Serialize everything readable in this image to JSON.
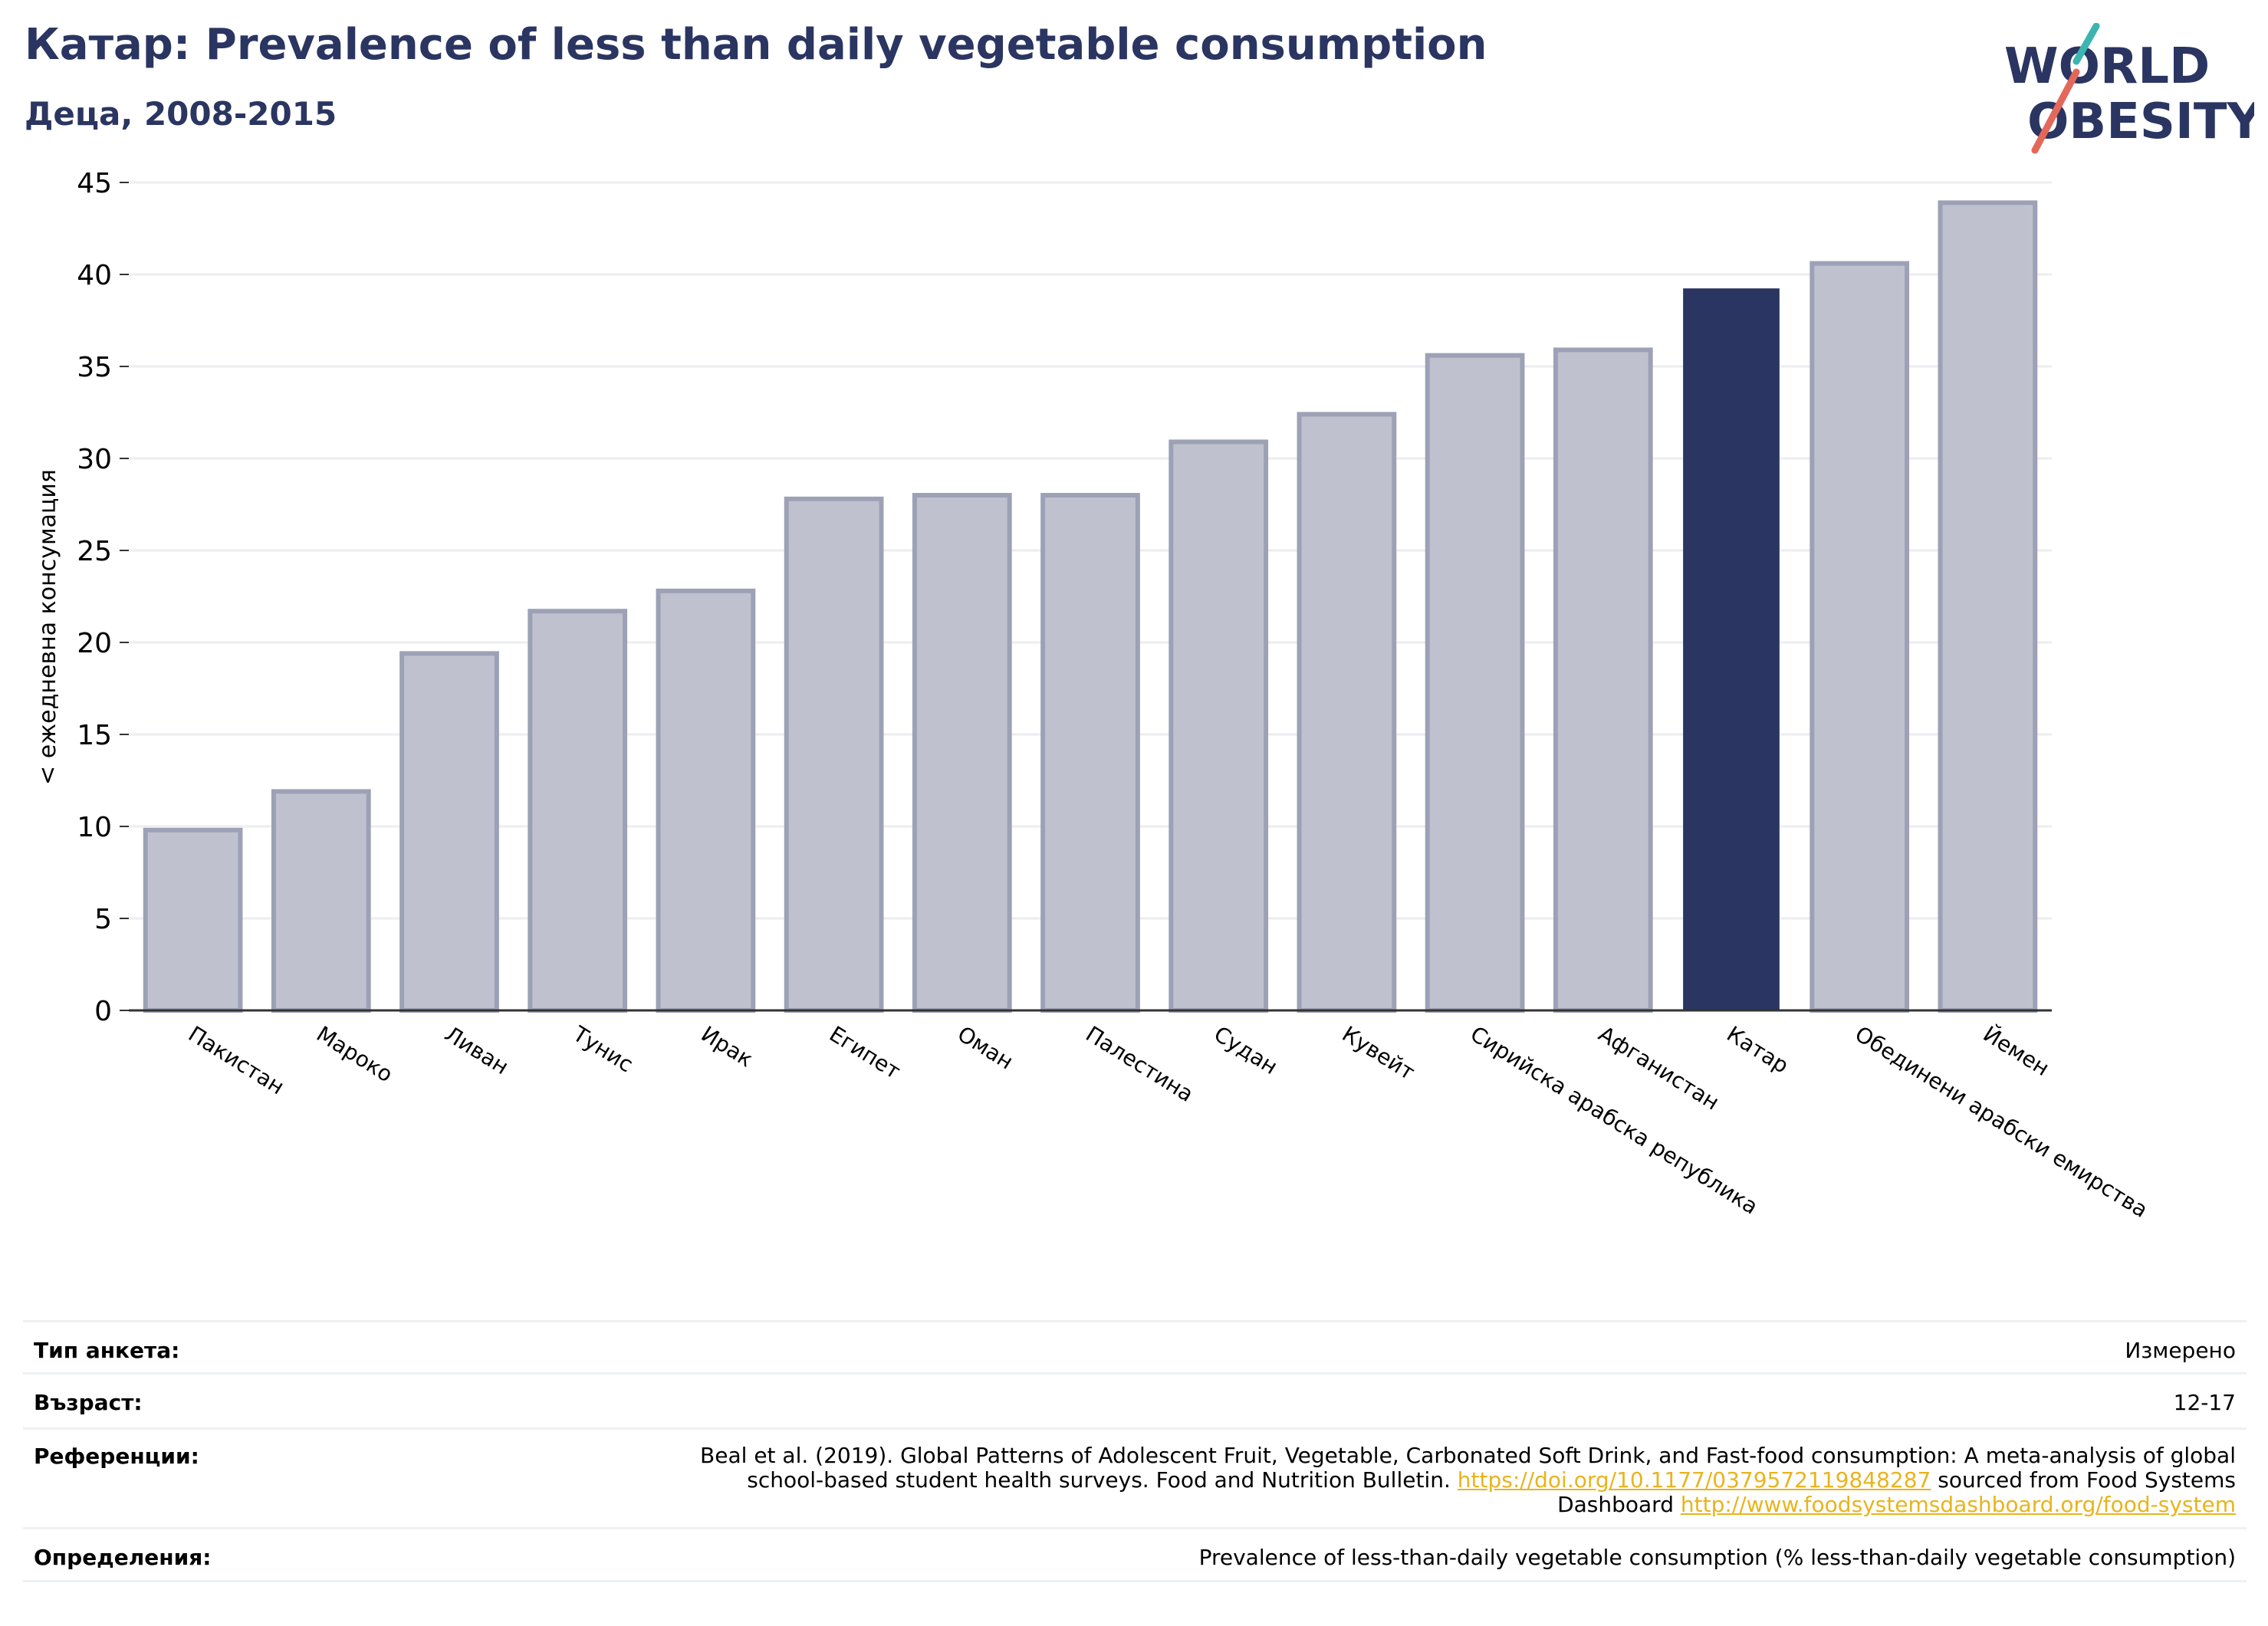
{
  "header": {
    "title": "Катар: Prevalence of less than daily vegetable consumption",
    "subtitle": "Деца, 2008-2015"
  },
  "logo": {
    "line1": "WORLD",
    "line2": "OBESITY",
    "accent_colors": [
      "#3ab5b0",
      "#e4685a"
    ]
  },
  "chart_data": {
    "type": "bar",
    "title": "",
    "ylabel": "< ежедневна консумация",
    "xlabel": "",
    "ylim": [
      0,
      45
    ],
    "yticks": [
      0,
      5,
      10,
      15,
      20,
      25,
      30,
      35,
      40,
      45
    ],
    "grid": true,
    "categories": [
      "Пакистан",
      "Мароко",
      "Ливан",
      "Тунис",
      "Ирак",
      "Египет",
      "Оман",
      "Палестина",
      "Судан",
      "Кувейт",
      "Сирийска арабска република",
      "Афганистан",
      "Катар",
      "Обединени арабски емирства",
      "Йемен"
    ],
    "values": [
      9.8,
      11.9,
      19.4,
      21.7,
      22.8,
      27.8,
      28.0,
      28.0,
      30.9,
      32.4,
      35.6,
      35.9,
      39.2,
      40.6,
      43.9
    ],
    "highlight": "Катар",
    "colors": {
      "bar": "#bfc2ce",
      "bar_edge": "#9da1b6",
      "highlight": "#2a3561",
      "grid": "#eceef2",
      "axis": "#333333"
    }
  },
  "meta": {
    "survey_type_label": "Тип анкета:",
    "survey_type_value": "Измерено",
    "age_label": "Възраст:",
    "age_value": "12-17",
    "references_label": "Референции:",
    "references_text_1": "Beal et al. (2019). Global Patterns of Adolescent Fruit, Vegetable, Carbonated Soft Drink, and Fast-food consumption: A meta-analysis of global school-based student health surveys. Food and Nutrition Bulletin. ",
    "references_link_1": "https://doi.org/10.1177/0379572119848287",
    "references_text_2": " sourced from Food Systems Dashboard ",
    "references_link_2": "http://www.foodsystemsdashboard.org/food-system",
    "definitions_label": "Определения:",
    "definitions_value": "Prevalence of less-than-daily vegetable consumption (% less-than-daily vegetable consumption)"
  }
}
